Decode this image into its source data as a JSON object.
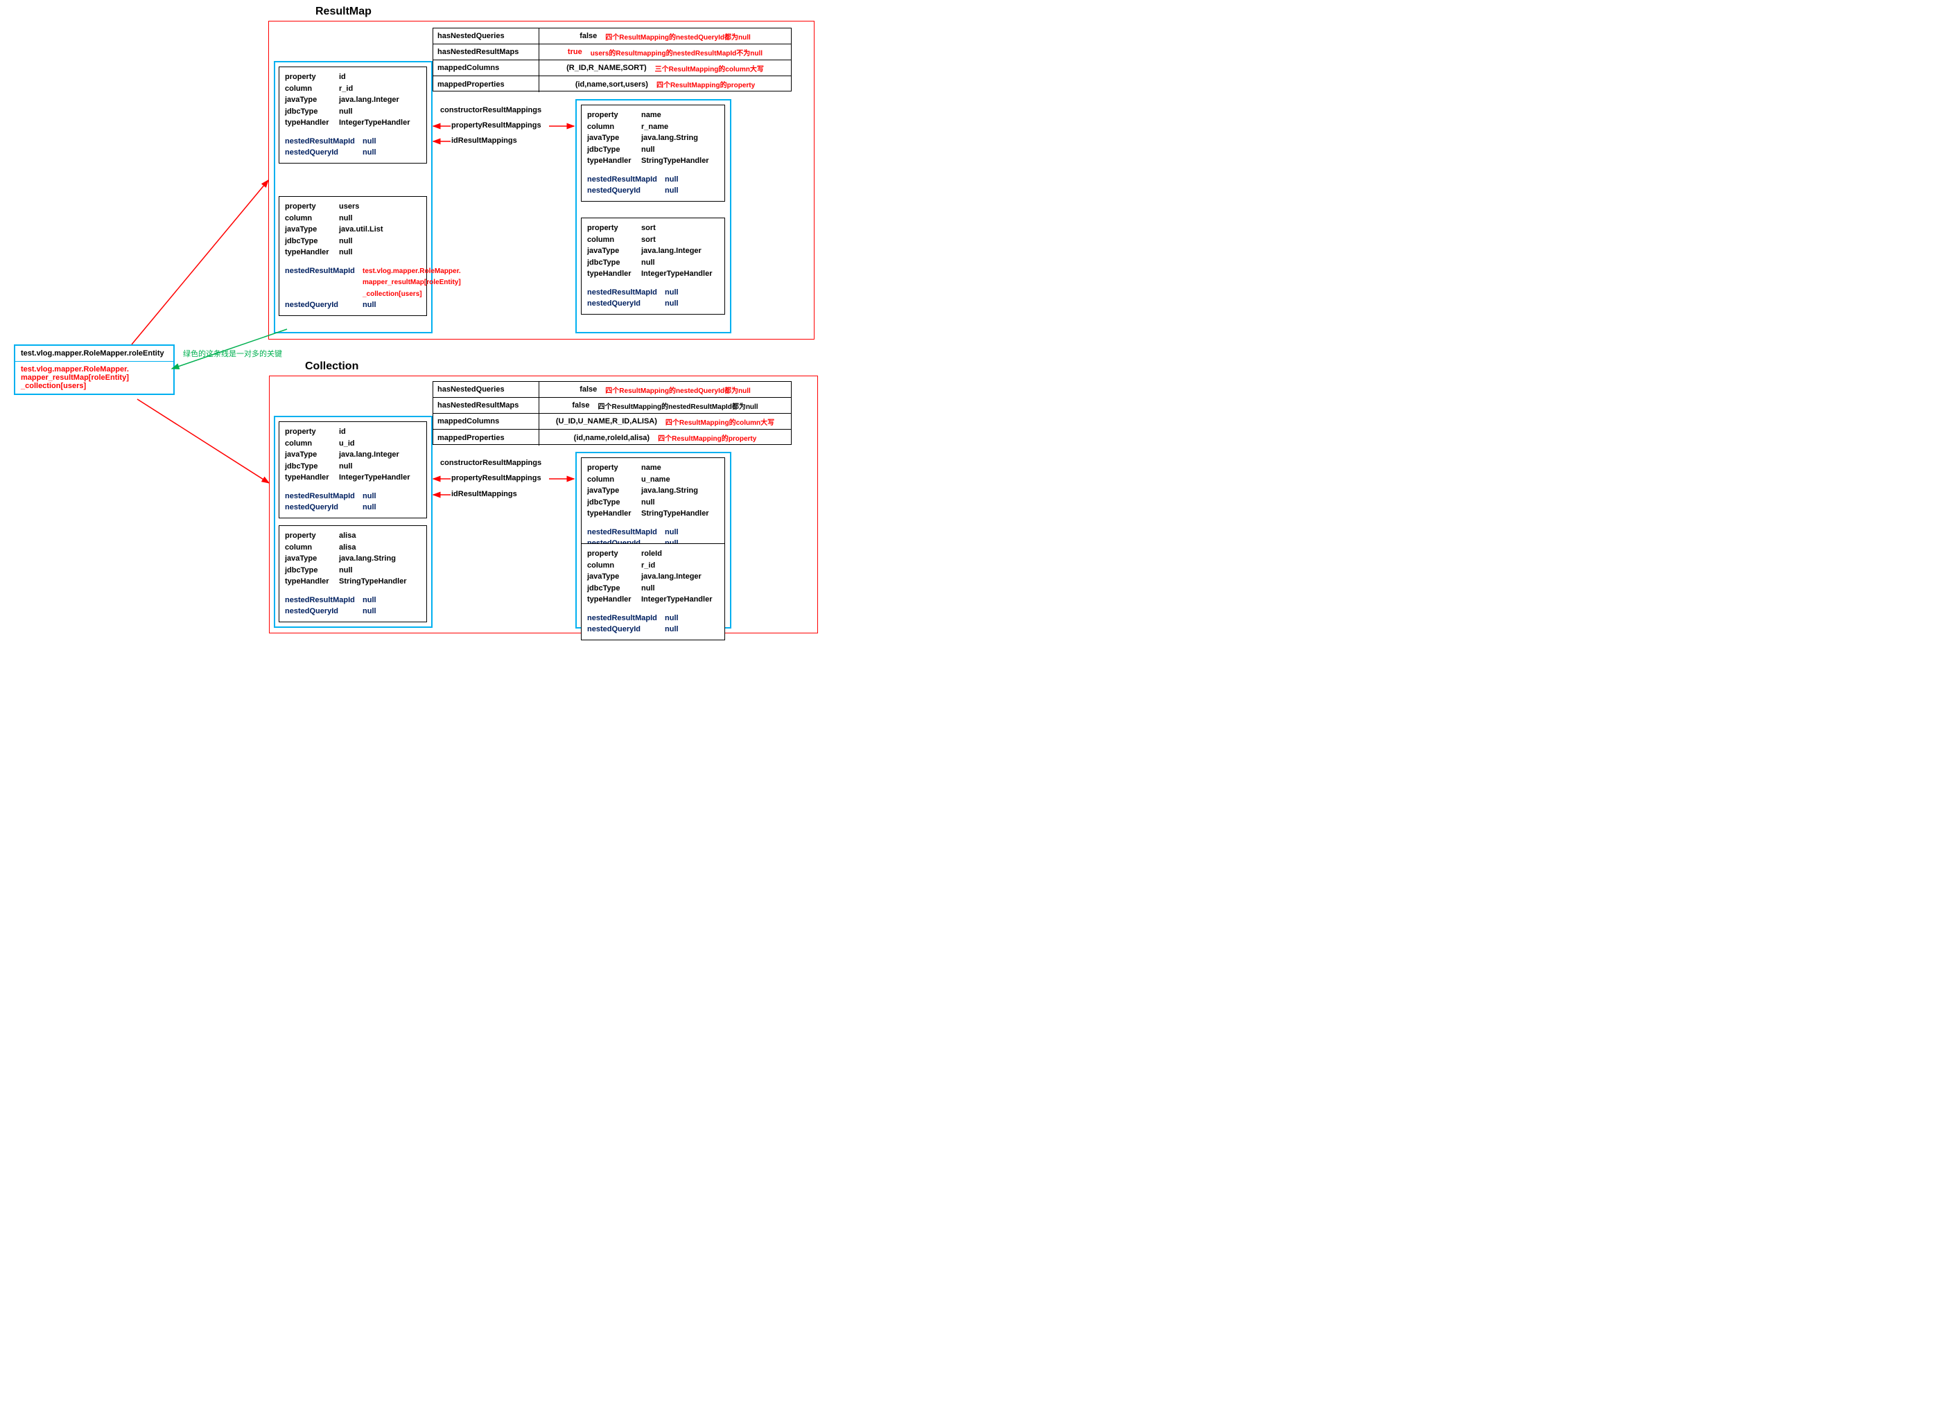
{
  "titles": {
    "resultMap": "ResultMap",
    "collection": "Collection"
  },
  "colors": {
    "red": "#ff0000",
    "cyan": "#00b0f0",
    "black": "#000000",
    "blue": "#002060",
    "green": "#00b050",
    "bg": "#ffffff"
  },
  "leftBox": {
    "line1": "test.vlog.mapper.RoleMapper.roleEntity",
    "line2a": "test.vlog.mapper.RoleMapper.",
    "line2b": "mapper_resultMap[roleEntity]",
    "line2c": "_collection[users]"
  },
  "greenNote": "绿色的这条线是一对多的关键",
  "resultMap": {
    "table": [
      {
        "k": "hasNestedQueries",
        "v": "false",
        "note": "四个ResultMapping的nestedQueryId都为null"
      },
      {
        "k": "hasNestedResultMaps",
        "v": "true",
        "vRed": true,
        "note": "users的Resultmapping的nestedResultMapId不为null"
      },
      {
        "k": "mappedColumns",
        "v": "(R_ID,R_NAME,SORT)",
        "note": "三个ResultMapping的column大写"
      },
      {
        "k": "mappedProperties",
        "v": "(id,name,sort,users)",
        "note": "四个ResultMapping的property"
      }
    ],
    "midLabels": [
      "constructorResultMappings",
      "propertyResultMappings",
      "idResultMappings"
    ],
    "boxes": {
      "id": {
        "rows": [
          [
            "property",
            "id"
          ],
          [
            "column",
            "r_id"
          ],
          [
            "javaType",
            "java.lang.Integer"
          ],
          [
            "jdbcType",
            "null"
          ],
          [
            "typeHandler",
            "IntegerTypeHandler"
          ]
        ],
        "blueRows": [
          [
            "nestedResultMapId",
            "null"
          ],
          [
            "nestedQueryId",
            "null"
          ]
        ]
      },
      "users": {
        "rows": [
          [
            "property",
            "users"
          ],
          [
            "column",
            "null"
          ],
          [
            "javaType",
            "java.util.List"
          ],
          [
            "jdbcType",
            "null"
          ],
          [
            "typeHandler",
            "null"
          ]
        ],
        "blueRows": [
          [
            "nestedResultMapId",
            "test.vlog.mapper.RoleMapper.\nmapper_resultMap[roleEntity]\n_collection[users]",
            true
          ],
          [
            "nestedQueryId",
            "null"
          ]
        ]
      },
      "name": {
        "rows": [
          [
            "property",
            "name"
          ],
          [
            "column",
            "r_name"
          ],
          [
            "javaType",
            "java.lang.String"
          ],
          [
            "jdbcType",
            "null"
          ],
          [
            "typeHandler",
            "StringTypeHandler"
          ]
        ],
        "blueRows": [
          [
            "nestedResultMapId",
            "null"
          ],
          [
            "nestedQueryId",
            "null"
          ]
        ]
      },
      "sort": {
        "rows": [
          [
            "property",
            "sort"
          ],
          [
            "column",
            "sort"
          ],
          [
            "javaType",
            "java.lang.Integer"
          ],
          [
            "jdbcType",
            "null"
          ],
          [
            "typeHandler",
            "IntegerTypeHandler"
          ]
        ],
        "blueRows": [
          [
            "nestedResultMapId",
            "null"
          ],
          [
            "nestedQueryId",
            "null"
          ]
        ]
      }
    }
  },
  "collection": {
    "table": [
      {
        "k": "hasNestedQueries",
        "v": "false",
        "note": "四个ResultMapping的nestedQueryId都为null"
      },
      {
        "k": "hasNestedResultMaps",
        "v": "false",
        "note2": "四个ResultMapping的nestedResultMapId都为null "
      },
      {
        "k": "mappedColumns",
        "v": "(U_ID,U_NAME,R_ID,ALISA)",
        "note": "四个ResultMapping的column大写"
      },
      {
        "k": "mappedProperties",
        "v": "(id,name,roleId,alisa)",
        "note": "四个ResultMapping的property"
      }
    ],
    "midLabels": [
      "constructorResultMappings",
      "propertyResultMappings",
      "idResultMappings"
    ],
    "boxes": {
      "id": {
        "rows": [
          [
            "property",
            "id"
          ],
          [
            "column",
            "u_id"
          ],
          [
            "javaType",
            "java.lang.Integer"
          ],
          [
            "jdbcType",
            "null"
          ],
          [
            "typeHandler",
            "IntegerTypeHandler"
          ]
        ],
        "blueRows": [
          [
            "nestedResultMapId",
            "null"
          ],
          [
            "nestedQueryId",
            "null"
          ]
        ]
      },
      "alisa": {
        "rows": [
          [
            "property",
            "alisa"
          ],
          [
            "column",
            "alisa"
          ],
          [
            "javaType",
            "java.lang.String"
          ],
          [
            "jdbcType",
            "null"
          ],
          [
            "typeHandler",
            "StringTypeHandler"
          ]
        ],
        "blueRows": [
          [
            "nestedResultMapId",
            "null"
          ],
          [
            "nestedQueryId",
            "null"
          ]
        ]
      },
      "name": {
        "rows": [
          [
            "property",
            "name"
          ],
          [
            "column",
            "u_name"
          ],
          [
            "javaType",
            "java.lang.String"
          ],
          [
            "jdbcType",
            "null"
          ],
          [
            "typeHandler",
            "StringTypeHandler"
          ]
        ],
        "blueRows": [
          [
            "nestedResultMapId",
            "null"
          ],
          [
            "nestedQueryId",
            "null"
          ]
        ]
      },
      "roleId": {
        "rows": [
          [
            "property",
            "roleId"
          ],
          [
            "column",
            "r_id"
          ],
          [
            "javaType",
            "java.lang.Integer"
          ],
          [
            "jdbcType",
            "null"
          ],
          [
            "typeHandler",
            "IntegerTypeHandler"
          ]
        ],
        "blueRows": [
          [
            "nestedResultMapId",
            "null"
          ],
          [
            "nestedQueryId",
            "null"
          ]
        ]
      }
    }
  }
}
